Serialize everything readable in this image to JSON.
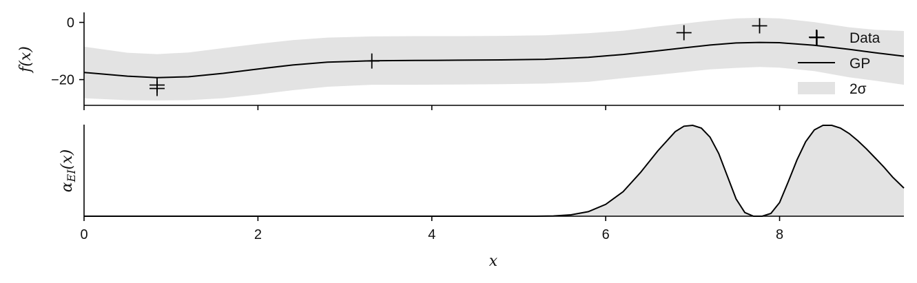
{
  "chart_data": [
    {
      "type": "line",
      "panel": "gp-posterior",
      "ylabel": "f(x)",
      "xlim": [
        0,
        9.43
      ],
      "ylim": [
        -29,
        3.5
      ],
      "yticks": [
        0,
        -20
      ],
      "ytick_labels": [
        "0",
        "−20"
      ],
      "xticks": [
        0,
        2,
        4,
        6,
        8
      ],
      "legend": {
        "placement": "upper-right",
        "entries": [
          {
            "label": "Data",
            "marker": "plus"
          },
          {
            "label": "GP",
            "marker": "line"
          },
          {
            "label": "2σ",
            "marker": "band"
          }
        ]
      },
      "series": [
        {
          "name": "Data",
          "kind": "scatter",
          "points": [
            {
              "x": 0.84,
              "y": -21.9
            },
            {
              "x": 0.84,
              "y": -23.1
            },
            {
              "x": 3.31,
              "y": -13.5
            },
            {
              "x": 6.9,
              "y": -3.6
            },
            {
              "x": 7.77,
              "y": -1.2
            },
            {
              "x": 8.43,
              "y": -5.3
            }
          ]
        },
        {
          "name": "GP",
          "kind": "line",
          "x": [
            0,
            0.5,
            0.84,
            1.2,
            1.6,
            2.0,
            2.4,
            2.8,
            3.31,
            3.8,
            4.3,
            4.8,
            5.3,
            5.8,
            6.2,
            6.6,
            6.9,
            7.2,
            7.5,
            7.77,
            8.0,
            8.4,
            8.8,
            9.1,
            9.43
          ],
          "y": [
            -17.5,
            -18.8,
            -19.3,
            -19.0,
            -17.8,
            -16.3,
            -14.9,
            -13.9,
            -13.4,
            -13.3,
            -13.2,
            -13.1,
            -12.9,
            -12.2,
            -11.2,
            -9.9,
            -8.9,
            -7.9,
            -7.2,
            -7.0,
            -7.1,
            -8.0,
            -9.4,
            -10.6,
            -11.8
          ]
        },
        {
          "name": "2σ",
          "kind": "band",
          "x": [
            0,
            0.5,
            0.84,
            1.2,
            1.6,
            2.0,
            2.4,
            2.8,
            3.31,
            3.8,
            4.3,
            4.8,
            5.3,
            5.8,
            6.2,
            6.6,
            6.9,
            7.2,
            7.5,
            7.77,
            8.0,
            8.4,
            8.8,
            9.1,
            9.43
          ],
          "upper": [
            -8.5,
            -10.6,
            -11.1,
            -10.5,
            -9.0,
            -7.5,
            -6.2,
            -5.3,
            -4.9,
            -4.8,
            -4.8,
            -4.7,
            -4.5,
            -3.8,
            -2.9,
            -1.4,
            -0.4,
            0.6,
            1.4,
            1.6,
            1.4,
            0.1,
            -1.7,
            -2.6,
            -3.0
          ],
          "lower": [
            -26.5,
            -27.2,
            -27.3,
            -27.2,
            -26.5,
            -25.2,
            -23.7,
            -22.5,
            -21.8,
            -21.8,
            -21.7,
            -21.6,
            -21.4,
            -20.8,
            -19.5,
            -18.3,
            -17.4,
            -16.4,
            -15.9,
            -15.6,
            -15.8,
            -17.0,
            -19.2,
            -20.4,
            -21.8
          ]
        }
      ]
    },
    {
      "type": "area",
      "panel": "acquisition",
      "ylabel": "α_EI(x)",
      "xlabel": "x",
      "xlim": [
        0,
        9.43
      ],
      "ylim": [
        0,
        1
      ],
      "xticks": [
        0,
        2,
        4,
        6,
        8
      ],
      "xtick_labels": [
        "0",
        "2",
        "4",
        "6",
        "8"
      ],
      "series": [
        {
          "name": "",
          "x": [
            0,
            5.2,
            5.4,
            5.6,
            5.8,
            6.0,
            6.2,
            6.4,
            6.6,
            6.8,
            6.9,
            7.0,
            7.1,
            7.2,
            7.3,
            7.4,
            7.5,
            7.6,
            7.7,
            7.8,
            7.9,
            8.0,
            8.1,
            8.2,
            8.3,
            8.4,
            8.5,
            8.6,
            8.7,
            8.8,
            8.9,
            9.0,
            9.1,
            9.2,
            9.3,
            9.43
          ],
          "y": [
            0,
            0,
            0.003,
            0.015,
            0.05,
            0.13,
            0.27,
            0.48,
            0.72,
            0.93,
            0.99,
            1.0,
            0.97,
            0.87,
            0.69,
            0.44,
            0.19,
            0.04,
            0.0,
            0.0,
            0.03,
            0.15,
            0.38,
            0.62,
            0.82,
            0.95,
            1.0,
            1.0,
            0.97,
            0.91,
            0.83,
            0.74,
            0.64,
            0.54,
            0.43,
            0.31
          ]
        }
      ]
    }
  ]
}
